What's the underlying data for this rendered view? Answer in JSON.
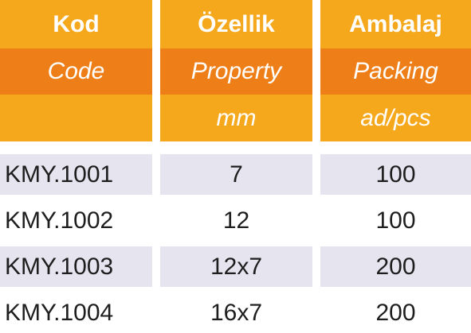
{
  "headers": {
    "code": {
      "tr": "Kod",
      "en": "Code",
      "unit": ""
    },
    "property": {
      "tr": "Özellik",
      "en": "Property",
      "unit": "mm"
    },
    "packing": {
      "tr": "Ambalaj",
      "en": "Packing",
      "unit": "ad/pcs"
    }
  },
  "rows": [
    {
      "code": "KMY.1001",
      "property": "7",
      "packing": "100"
    },
    {
      "code": "KMY.1002",
      "property": "12",
      "packing": "100"
    },
    {
      "code": "KMY.1003",
      "property": "12x7",
      "packing": "200"
    },
    {
      "code": "KMY.1004",
      "property": "16x7",
      "packing": "200"
    }
  ],
  "colors": {
    "header_light": "#f6a81c",
    "header_dark": "#ee7f18",
    "row_shade": "#e5e4ef",
    "text": "#1e1e1e"
  }
}
